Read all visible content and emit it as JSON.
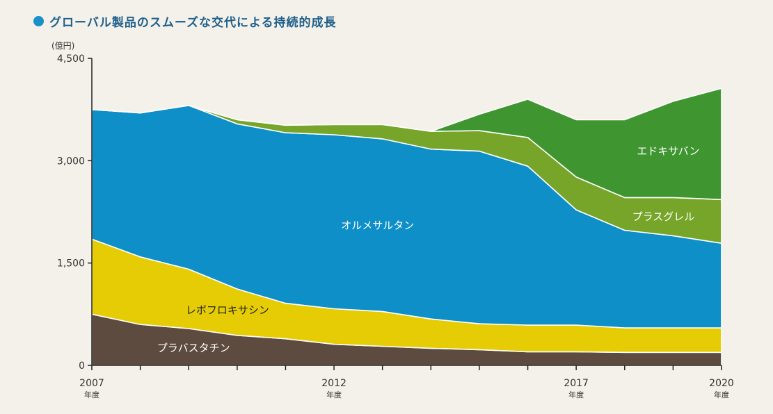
{
  "header": {
    "title": "グローバル製品のスムーズな交代による持続的成長"
  },
  "chart_data": {
    "type": "area",
    "stacked": true,
    "title": "グローバル製品のスムーズな交代による持続的成長",
    "y_unit": "(億円)",
    "ylim": [
      0,
      4500
    ],
    "yticks": [
      0,
      1500,
      3000,
      4500
    ],
    "ytick_labels": [
      "0",
      "1,500",
      "3,000",
      "4,500"
    ],
    "x": [
      2007,
      2008,
      2009,
      2010,
      2011,
      2012,
      2013,
      2014,
      2015,
      2016,
      2017,
      2018,
      2019,
      2020
    ],
    "xticks": [
      2007,
      2012,
      2017,
      2020
    ],
    "xtick_labels": [
      "2007",
      "2012",
      "2017",
      "2020"
    ],
    "xtick_sublabel": "年度",
    "grid": false,
    "series": [
      {
        "name": "プラバスタチン",
        "color": "#5e4b3f",
        "label_color": "#ffffff",
        "values": [
          750,
          600,
          540,
          440,
          390,
          310,
          280,
          250,
          230,
          200,
          200,
          190,
          190,
          190
        ]
      },
      {
        "name": "レボフロキサシン",
        "color": "#e5cc05",
        "label_color": "#222222",
        "values": [
          1100,
          990,
          870,
          680,
          520,
          520,
          510,
          430,
          380,
          390,
          390,
          360,
          360,
          360
        ]
      },
      {
        "name": "オルメサルタン",
        "color": "#0f8fc7",
        "label_color": "#ffffff",
        "values": [
          1900,
          2110,
          2400,
          2420,
          2500,
          2550,
          2530,
          2490,
          2530,
          2330,
          1690,
          1430,
          1350,
          1240
        ]
      },
      {
        "name": "プラスグレル",
        "color": "#76a52a",
        "label_color": "#ffffff",
        "values": [
          0,
          0,
          0,
          60,
          110,
          150,
          210,
          260,
          300,
          420,
          480,
          480,
          560,
          640
        ]
      },
      {
        "name": "エドキサバン",
        "color": "#3f9630",
        "label_color": "#ffffff",
        "values": [
          0,
          0,
          0,
          0,
          0,
          0,
          0,
          0,
          240,
          560,
          840,
          1140,
          1410,
          1630
        ]
      }
    ]
  }
}
